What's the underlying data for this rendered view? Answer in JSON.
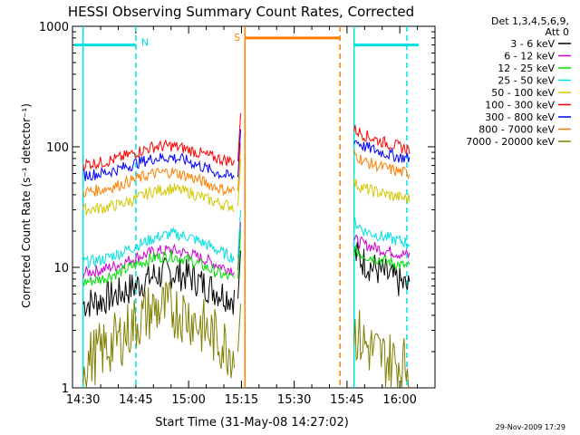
{
  "chart_data": {
    "type": "line",
    "title": "HESSI Observing Summary Count Rates, Corrected",
    "xlabel": "Start Time (31-May-08 14:27:02)",
    "ylabel": "Corrected Count Rate (s⁻¹ detector⁻¹)",
    "xlim": [
      "14:27",
      "16:10"
    ],
    "ylim": [
      1,
      1000
    ],
    "yscale": "log",
    "x_ticks": [
      "14:30",
      "14:45",
      "15:00",
      "15:15",
      "15:30",
      "15:45",
      "16:00"
    ],
    "y_ticks": [
      "1",
      "10",
      "100",
      "1000"
    ],
    "legend_header": [
      "Det 1,3,4,5,6,9,",
      "Att 0"
    ],
    "legend_position": "right",
    "series": [
      {
        "name": "3 - 6 keV",
        "color": "#000000",
        "segments": [
          {
            "x": [
              "14:30",
              "14:35",
              "14:40",
              "14:45",
              "14:50",
              "14:55",
              "15:00",
              "15:05",
              "15:10",
              "15:13"
            ],
            "y": [
              5,
              5.3,
              6,
              7,
              8.5,
              9,
              8.5,
              7,
              6,
              5.5
            ]
          },
          {
            "x": [
              "15:47",
              "15:50",
              "15:55",
              "16:00",
              "16:03"
            ],
            "y": [
              13,
              11,
              9,
              7.5,
              6.5
            ]
          }
        ]
      },
      {
        "name": "6 - 12 keV",
        "color": "#d200d2",
        "segments": [
          {
            "x": [
              "14:30",
              "14:35",
              "14:40",
              "14:45",
              "14:50",
              "14:55",
              "15:00",
              "15:05",
              "15:10",
              "15:13"
            ],
            "y": [
              9,
              9.5,
              10.5,
              12,
              13.5,
              14,
              13,
              11.5,
              10,
              9.5
            ]
          },
          {
            "x": [
              "15:47",
              "15:50",
              "15:55",
              "16:00",
              "16:03"
            ],
            "y": [
              17,
              15.5,
              14,
              13,
              12.5
            ]
          }
        ]
      },
      {
        "name": "12 - 25 keV",
        "color": "#00e000",
        "segments": [
          {
            "x": [
              "14:30",
              "14:35",
              "14:40",
              "14:45",
              "14:50",
              "14:55",
              "15:00",
              "15:05",
              "15:10",
              "15:13"
            ],
            "y": [
              7.5,
              8,
              9,
              10.5,
              12,
              12.5,
              11.5,
              10,
              8.5,
              8
            ]
          },
          {
            "x": [
              "15:47",
              "15:50",
              "15:55",
              "16:00",
              "16:03"
            ],
            "y": [
              14,
              12.5,
              11.5,
              10.5,
              10
            ]
          }
        ]
      },
      {
        "name": "25 - 50 keV",
        "color": "#00e0e0",
        "segments": [
          {
            "x": [
              "14:30",
              "14:35",
              "14:40",
              "14:45",
              "14:50",
              "14:55",
              "15:00",
              "15:05",
              "15:10",
              "15:13"
            ],
            "y": [
              11,
              11.5,
              13,
              15,
              17.5,
              19,
              18,
              15.5,
              13,
              12
            ]
          },
          {
            "x": [
              "15:47",
              "15:50",
              "15:55",
              "16:00",
              "16:03"
            ],
            "y": [
              24,
              20,
              18,
              16.5,
              16
            ]
          }
        ]
      },
      {
        "name": "50 - 100 keV",
        "color": "#d2c800",
        "segments": [
          {
            "x": [
              "14:30",
              "14:35",
              "14:40",
              "14:45",
              "14:50",
              "14:55",
              "15:00",
              "15:05",
              "15:10",
              "15:13"
            ],
            "y": [
              30,
              31,
              33,
              37,
              43,
              45,
              42,
              37,
              33,
              32
            ]
          },
          {
            "x": [
              "15:47",
              "15:50",
              "15:55",
              "16:00",
              "16:03"
            ],
            "y": [
              50,
              45,
              41,
              38,
              37
            ]
          }
        ]
      },
      {
        "name": "100 - 300 keV",
        "color": "#ff0000",
        "segments": [
          {
            "x": [
              "14:30",
              "14:35",
              "14:40",
              "14:45",
              "14:50",
              "14:55",
              "15:00",
              "15:05",
              "15:10",
              "15:13"
            ],
            "y": [
              72,
              74,
              80,
              90,
              100,
              102,
              95,
              85,
              78,
              76
            ]
          },
          {
            "x": [
              "15:47",
              "15:50",
              "15:55",
              "16:00",
              "16:03"
            ],
            "y": [
              140,
              125,
              110,
              100,
              95
            ]
          }
        ]
      },
      {
        "name": "300 - 800 keV",
        "color": "#0000ff",
        "segments": [
          {
            "x": [
              "14:30",
              "14:35",
              "14:40",
              "14:45",
              "14:50",
              "14:55",
              "15:00",
              "15:05",
              "15:10",
              "15:13"
            ],
            "y": [
              58,
              60,
              65,
              73,
              80,
              82,
              76,
              66,
              58,
              56
            ]
          },
          {
            "x": [
              "15:47",
              "15:50",
              "15:55",
              "16:00",
              "16:03"
            ],
            "y": [
              115,
              100,
              90,
              82,
              80
            ]
          }
        ]
      },
      {
        "name": "800 - 7000 keV",
        "color": "#ff8000",
        "segments": [
          {
            "x": [
              "14:30",
              "14:35",
              "14:40",
              "14:45",
              "14:50",
              "14:55",
              "15:00",
              "15:05",
              "15:10",
              "15:13"
            ],
            "y": [
              42,
              44,
              48,
              54,
              60,
              62,
              57,
              50,
              44,
              43
            ]
          },
          {
            "x": [
              "15:47",
              "15:50",
              "15:55",
              "16:00",
              "16:03"
            ],
            "y": [
              88,
              75,
              68,
              62,
              60
            ]
          }
        ]
      },
      {
        "name": "7000 - 20000 keV",
        "color": "#808000",
        "segments": [
          {
            "x": [
              "14:30",
              "14:35",
              "14:40",
              "14:45",
              "14:50",
              "14:55",
              "15:00",
              "15:05",
              "15:10",
              "15:13"
            ],
            "y": [
              1.6,
              2,
              2.5,
              3.5,
              4.5,
              4.5,
              4,
              3,
              2.3,
              2
            ]
          },
          {
            "x": [
              "15:47",
              "15:50",
              "15:55",
              "16:00",
              "16:03"
            ],
            "y": [
              3,
              2.3,
              1.8,
              1.6,
              1.5
            ]
          }
        ]
      }
    ],
    "annotations": [
      {
        "label": "N",
        "color": "#00e0e0",
        "start": "14:45",
        "end": "15:46",
        "level": 700
      },
      {
        "label": "S",
        "color": "#ff8000",
        "start": "15:16",
        "end": "15:43",
        "level": 800
      }
    ],
    "vertical_lines": [
      {
        "x": "14:30",
        "color": "#00e0e0",
        "style": "solid"
      },
      {
        "x": "14:45",
        "color": "#00e0e0",
        "style": "dashed"
      },
      {
        "x": "15:16",
        "color": "#ff8000",
        "style": "solid"
      },
      {
        "x": "15:43",
        "color": "#ff8000",
        "style": "dashed"
      },
      {
        "x": "15:47",
        "color": "#00e0e0",
        "style": "solid"
      },
      {
        "x": "16:02",
        "color": "#00e0e0",
        "style": "dashed"
      }
    ],
    "footer_timestamp": "29-Nov-2009 17:29"
  }
}
